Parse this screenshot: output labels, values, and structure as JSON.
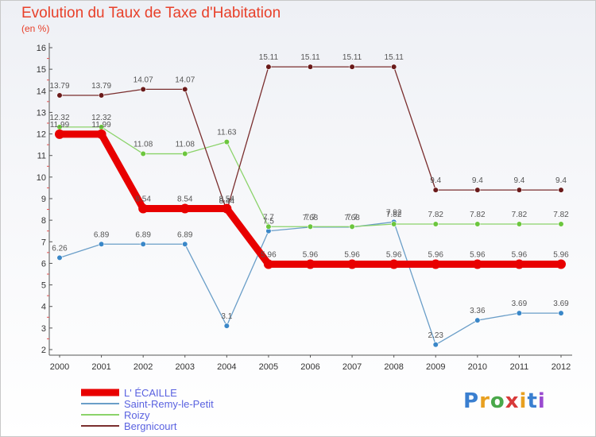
{
  "header": {
    "title": "Evolution du Taux de Taxe d'Habitation",
    "unit": "(en %)"
  },
  "logo": {
    "text": "Proxiti"
  },
  "chart_data": {
    "type": "line",
    "title": "Evolution du Taux de Taxe d'Habitation",
    "ylabel": "(en %)",
    "x": [
      2000,
      2001,
      2002,
      2003,
      2004,
      2005,
      2006,
      2007,
      2008,
      2009,
      2010,
      2011,
      2012
    ],
    "x_tick_labels": [
      "2000",
      "2001",
      "2002",
      "2003",
      "2004",
      "2005",
      "2006",
      "2007",
      "2008",
      "2009",
      "2010",
      "2011",
      "2012"
    ],
    "ylim": [
      2,
      16
    ],
    "y_ticks": [
      2,
      3,
      4,
      5,
      6,
      7,
      8,
      9,
      10,
      11,
      12,
      13,
      14,
      15,
      16
    ],
    "grid": false,
    "legend_position": "bottom-left",
    "series": [
      {
        "name": "L' ÉCAILLE",
        "color": "#e80000",
        "highlight": true,
        "values": [
          11.99,
          11.99,
          8.54,
          8.54,
          8.54,
          5.96,
          5.96,
          5.96,
          5.96,
          5.96,
          5.96,
          5.96,
          5.96
        ],
        "labels": [
          "11.99",
          "11.99",
          "8.54",
          "8.54",
          "8.54",
          "5.96",
          "5.96",
          "5.96",
          "5.96",
          "5.96",
          "5.96",
          "5.96",
          "5.96"
        ]
      },
      {
        "name": "Saint-Remy-le-Petit",
        "color": "#6a9ec8",
        "marker": "#3a87c8",
        "values": [
          6.26,
          6.89,
          6.89,
          6.89,
          3.1,
          7.5,
          7.68,
          7.68,
          7.92,
          2.23,
          3.36,
          3.69,
          3.69
        ],
        "labels": [
          "6.26",
          "6.89",
          "6.89",
          "6.89",
          "3.1",
          "7.5",
          "7.68",
          "7.68",
          "7.92",
          "2.23",
          "3.36",
          "3.69",
          "3.69"
        ]
      },
      {
        "name": "Roizy",
        "color": "#8bd36a",
        "marker": "#6cc63e",
        "values": [
          12.32,
          12.32,
          11.08,
          11.08,
          11.63,
          7.7,
          7.7,
          7.7,
          7.82,
          7.82,
          7.82,
          7.82,
          7.82
        ],
        "labels": [
          "12.32",
          "12.32",
          "11.08",
          "11.08",
          "11.63",
          "7.7",
          "7.7",
          "7.7",
          "7.82",
          "7.82",
          "7.82",
          "7.82",
          "7.82"
        ]
      },
      {
        "name": "Bergnicourt",
        "color": "#7a2e2e",
        "marker": "#6a1a1a",
        "values": [
          13.79,
          13.79,
          14.07,
          14.07,
          8.44,
          15.11,
          15.11,
          15.11,
          15.11,
          9.4,
          9.4,
          9.4,
          9.4
        ],
        "labels": [
          "13.79",
          "13.79",
          "14.07",
          "14.07",
          "8.44",
          "15.11",
          "15.11",
          "15.11",
          "15.11",
          "9.4",
          "9.4",
          "9.4",
          "9.4"
        ]
      }
    ]
  }
}
